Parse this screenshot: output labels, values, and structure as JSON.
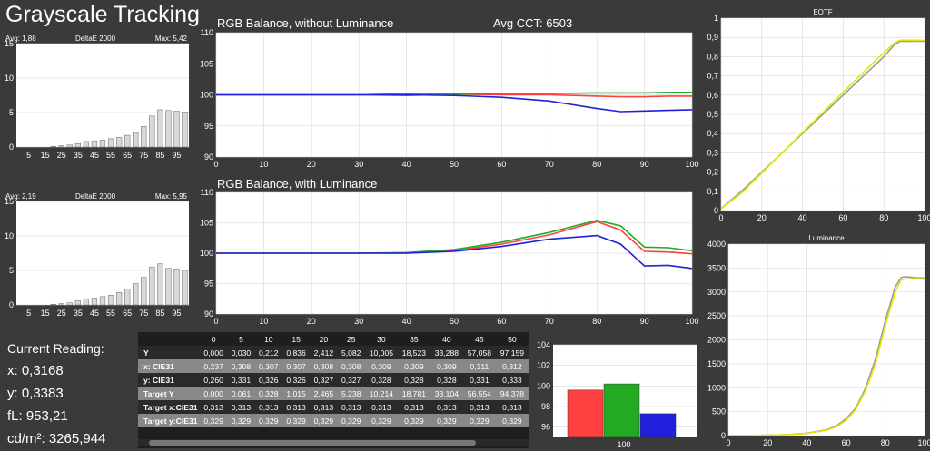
{
  "title": "Grayscale Tracking",
  "colors": {
    "red": "#ff4040",
    "green": "#22aa22",
    "blue": "#2020dd",
    "yellow": "#e6e600",
    "gray": "#9a9a9a"
  },
  "current_reading": {
    "label": "Current Reading:",
    "x": "x: 0,3168",
    "y": "y: 0,3383",
    "fl": "fL: 953,21",
    "cdm2": "cd/m²: 3265,944"
  },
  "chart_data": [
    {
      "id": "de1",
      "type": "bar",
      "title": "DeltaE 2000",
      "avg_label": "Avg: 1,88",
      "max_label": "Max: 5,42",
      "categories": [
        0,
        5,
        10,
        15,
        20,
        25,
        30,
        35,
        40,
        45,
        50,
        55,
        60,
        65,
        70,
        75,
        80,
        85,
        90,
        95,
        100
      ],
      "values": [
        0,
        0,
        0,
        0,
        0.1,
        0.2,
        0.3,
        0.5,
        0.8,
        0.9,
        1.0,
        1.2,
        1.4,
        1.7,
        2.1,
        3.0,
        4.5,
        5.4,
        5.3,
        5.2,
        5.1
      ],
      "ylim": [
        0,
        15
      ],
      "yticks": [
        0,
        5,
        10,
        15
      ]
    },
    {
      "id": "de2",
      "type": "bar",
      "title": "DeltaE 2000",
      "avg_label": "Avg: 2,19",
      "max_label": "Max: 5,95",
      "categories": [
        0,
        5,
        10,
        15,
        20,
        25,
        30,
        35,
        40,
        45,
        50,
        55,
        60,
        65,
        70,
        75,
        80,
        85,
        90,
        95,
        100
      ],
      "values": [
        0,
        0,
        0,
        0,
        0.1,
        0.2,
        0.3,
        0.6,
        0.9,
        1.0,
        1.2,
        1.4,
        1.8,
        2.3,
        3.1,
        4.0,
        5.5,
        5.95,
        5.3,
        5.2,
        5.0
      ],
      "ylim": [
        0,
        15
      ],
      "yticks": [
        0,
        5,
        10,
        15
      ]
    },
    {
      "id": "rgb1",
      "type": "line",
      "title": "RGB Balance, without Luminance",
      "extra_label": "Avg CCT: 6503",
      "x": [
        0,
        10,
        20,
        30,
        40,
        50,
        60,
        70,
        80,
        85,
        90,
        95,
        100
      ],
      "series": [
        {
          "color": "red",
          "values": [
            100,
            100,
            100,
            100,
            100.2,
            100.1,
            100,
            100,
            99.8,
            99.7,
            99.7,
            99.8,
            99.8
          ]
        },
        {
          "color": "green",
          "values": [
            100,
            100,
            100,
            100,
            99.9,
            100.1,
            100.2,
            100.2,
            100.3,
            100.3,
            100.3,
            100.4,
            100.4
          ]
        },
        {
          "color": "blue",
          "values": [
            100,
            100,
            100,
            100,
            100,
            99.9,
            99.6,
            99.0,
            97.8,
            97.3,
            97.4,
            97.5,
            97.6
          ]
        }
      ],
      "xlim": [
        0,
        100
      ],
      "ylim": [
        90,
        110
      ],
      "yticks": [
        90,
        95,
        100,
        105,
        110
      ]
    },
    {
      "id": "rgb2",
      "type": "line",
      "title": "RGB Balance, with Luminance",
      "x": [
        0,
        10,
        20,
        30,
        40,
        50,
        60,
        70,
        80,
        85,
        90,
        95,
        100
      ],
      "series": [
        {
          "color": "red",
          "values": [
            100,
            100,
            100,
            100,
            100,
            100.4,
            101.5,
            103,
            105.2,
            103.8,
            100.3,
            100.2,
            99.9
          ]
        },
        {
          "color": "green",
          "values": [
            100,
            100,
            100,
            100,
            100.1,
            100.6,
            101.8,
            103.4,
            105.4,
            104.5,
            101,
            100.9,
            100.4
          ]
        },
        {
          "color": "blue",
          "values": [
            100,
            100,
            100,
            100,
            100,
            100.3,
            101.1,
            102.3,
            102.9,
            101.5,
            97.9,
            98.0,
            97.5
          ]
        }
      ],
      "xlim": [
        0,
        100
      ],
      "ylim": [
        90,
        110
      ],
      "yticks": [
        90,
        95,
        100,
        105,
        110
      ]
    },
    {
      "id": "eotf",
      "type": "line",
      "title": "EOTF",
      "x": [
        0,
        10,
        20,
        30,
        40,
        50,
        60,
        70,
        80,
        85,
        88,
        90,
        100
      ],
      "series": [
        {
          "color": "gray",
          "values": [
            0.01,
            0.1,
            0.2,
            0.3,
            0.4,
            0.5,
            0.6,
            0.7,
            0.8,
            0.86,
            0.88,
            0.88,
            0.88
          ]
        },
        {
          "color": "yellow",
          "values": [
            0.01,
            0.09,
            0.195,
            0.3,
            0.405,
            0.51,
            0.615,
            0.72,
            0.82,
            0.87,
            0.886,
            0.886,
            0.885
          ]
        }
      ],
      "xlim": [
        0,
        100
      ],
      "ylim": [
        0,
        1
      ],
      "yticks": [
        "0",
        "0,1",
        "0,2",
        "0,3",
        "0,4",
        "0,5",
        "0,6",
        "0,7",
        "0,8",
        "0,9",
        "1"
      ]
    },
    {
      "id": "lum",
      "type": "line",
      "title": "Luminance",
      "x": [
        0,
        10,
        20,
        30,
        40,
        50,
        55,
        60,
        65,
        70,
        75,
        80,
        85,
        88,
        90,
        95,
        100
      ],
      "series": [
        {
          "color": "gray",
          "values": [
            0,
            2,
            8,
            20,
            50,
            120,
            200,
            350,
            580,
            1000,
            1600,
            2400,
            3100,
            3300,
            3320,
            3300,
            3290
          ]
        },
        {
          "color": "yellow",
          "values": [
            0,
            2,
            7,
            18,
            45,
            110,
            180,
            320,
            550,
            950,
            1500,
            2300,
            3000,
            3250,
            3270,
            3280,
            3270
          ]
        }
      ],
      "xlim": [
        0,
        100
      ],
      "ylim": [
        0,
        4000
      ],
      "yticks": [
        0,
        500,
        1000,
        1500,
        2000,
        2500,
        3000,
        3500,
        4000
      ]
    },
    {
      "id": "rgbbar",
      "type": "bar",
      "categories": [
        "100"
      ],
      "series": [
        {
          "color": "red",
          "values": [
            99.6
          ]
        },
        {
          "color": "green",
          "values": [
            100.2
          ]
        },
        {
          "color": "blue",
          "values": [
            97.3
          ]
        }
      ],
      "ylim": [
        95,
        104
      ],
      "yticks": [
        96,
        98,
        100,
        102,
        104
      ]
    }
  ],
  "table": {
    "headers": [
      "",
      "0",
      "5",
      "10",
      "15",
      "20",
      "25",
      "30",
      "35",
      "40",
      "45",
      "50"
    ],
    "rows": [
      {
        "label": "Y",
        "values": [
          "0,000",
          "0,030",
          "0,212",
          "0,836",
          "2,412",
          "5,082",
          "10,005",
          "18,523",
          "33,288",
          "57,058",
          "97,159"
        ]
      },
      {
        "label": "x: CIE31",
        "values": [
          "0,237",
          "0,308",
          "0,307",
          "0,307",
          "0,308",
          "0,308",
          "0,309",
          "0,309",
          "0,309",
          "0,311",
          "0,312"
        ]
      },
      {
        "label": "y: CIE31",
        "values": [
          "0,260",
          "0,331",
          "0,326",
          "0,326",
          "0,327",
          "0,327",
          "0,328",
          "0,328",
          "0,328",
          "0,331",
          "0,333"
        ]
      },
      {
        "label": "Target Y",
        "values": [
          "0,000",
          "0,061",
          "0,328",
          "1,015",
          "2,465",
          "5,238",
          "10,214",
          "18,781",
          "33,104",
          "56,554",
          "94,378"
        ]
      },
      {
        "label": "Target x:CIE31",
        "values": [
          "0,313",
          "0,313",
          "0,313",
          "0,313",
          "0,313",
          "0,313",
          "0,313",
          "0,313",
          "0,313",
          "0,313",
          "0,313"
        ]
      },
      {
        "label": "Target y:CIE31",
        "values": [
          "0,329",
          "0,329",
          "0,329",
          "0,329",
          "0,329",
          "0,329",
          "0,329",
          "0,329",
          "0,329",
          "0,329",
          "0,329"
        ]
      }
    ]
  }
}
